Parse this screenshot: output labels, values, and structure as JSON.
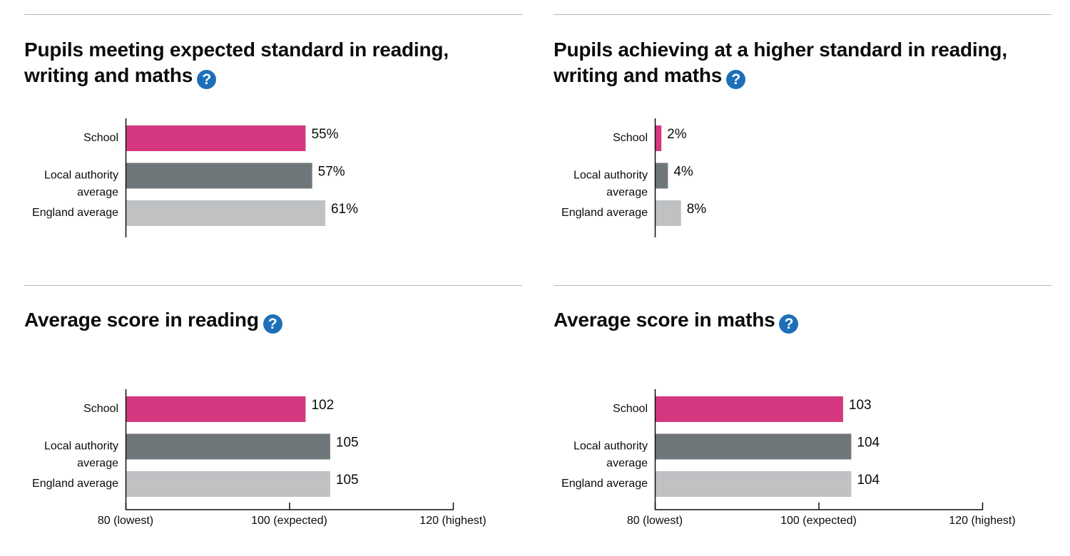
{
  "panels": [
    {
      "title": "Pupils meeting expected standard in reading, writing and maths",
      "help_icon": "help-question-icon",
      "value_suffix": "%",
      "show_x_axis": false,
      "chart_data": {
        "type": "bar",
        "orientation": "horizontal",
        "categories": [
          [
            "School"
          ],
          [
            "Local authority",
            "average"
          ],
          [
            "England average"
          ]
        ],
        "values": [
          55,
          57,
          61
        ],
        "value_labels": [
          "55%",
          "57%",
          "61%"
        ],
        "colors": [
          "#d53880",
          "#6f777b",
          "#bfc1c3"
        ],
        "xlim": [
          0,
          100
        ]
      }
    },
    {
      "title": "Pupils achieving at a higher standard in reading, writing and maths",
      "help_icon": "help-question-icon",
      "value_suffix": "%",
      "show_x_axis": false,
      "chart_data": {
        "type": "bar",
        "orientation": "horizontal",
        "categories": [
          [
            "School"
          ],
          [
            "Local authority",
            "average"
          ],
          [
            "England average"
          ]
        ],
        "values": [
          2,
          4,
          8
        ],
        "value_labels": [
          "2%",
          "4%",
          "8%"
        ],
        "colors": [
          "#d53880",
          "#6f777b",
          "#bfc1c3"
        ],
        "xlim": [
          0,
          100
        ]
      }
    },
    {
      "title": "Average score in reading",
      "help_icon": "help-question-icon",
      "show_x_axis": true,
      "chart_data": {
        "type": "bar",
        "orientation": "horizontal",
        "categories": [
          [
            "School"
          ],
          [
            "Local authority",
            "average"
          ],
          [
            "England average"
          ]
        ],
        "values": [
          102,
          105,
          105
        ],
        "value_labels": [
          "102",
          "105",
          "105"
        ],
        "colors": [
          "#d53880",
          "#6f777b",
          "#bfc1c3"
        ],
        "xlim": [
          80,
          120
        ],
        "x_ticks": [
          80,
          100,
          120
        ],
        "x_tick_labels": [
          "80 (lowest)",
          "100 (expected)",
          "120 (highest)"
        ]
      }
    },
    {
      "title": "Average score in maths",
      "help_icon": "help-question-icon",
      "show_x_axis": true,
      "chart_data": {
        "type": "bar",
        "orientation": "horizontal",
        "categories": [
          [
            "School"
          ],
          [
            "Local authority",
            "average"
          ],
          [
            "England average"
          ]
        ],
        "values": [
          103,
          104,
          104
        ],
        "value_labels": [
          "103",
          "104",
          "104"
        ],
        "colors": [
          "#d53880",
          "#6f777b",
          "#bfc1c3"
        ],
        "xlim": [
          80,
          120
        ],
        "x_ticks": [
          80,
          100,
          120
        ],
        "x_tick_labels": [
          "80 (lowest)",
          "100 (expected)",
          "120 (highest)"
        ]
      }
    }
  ]
}
